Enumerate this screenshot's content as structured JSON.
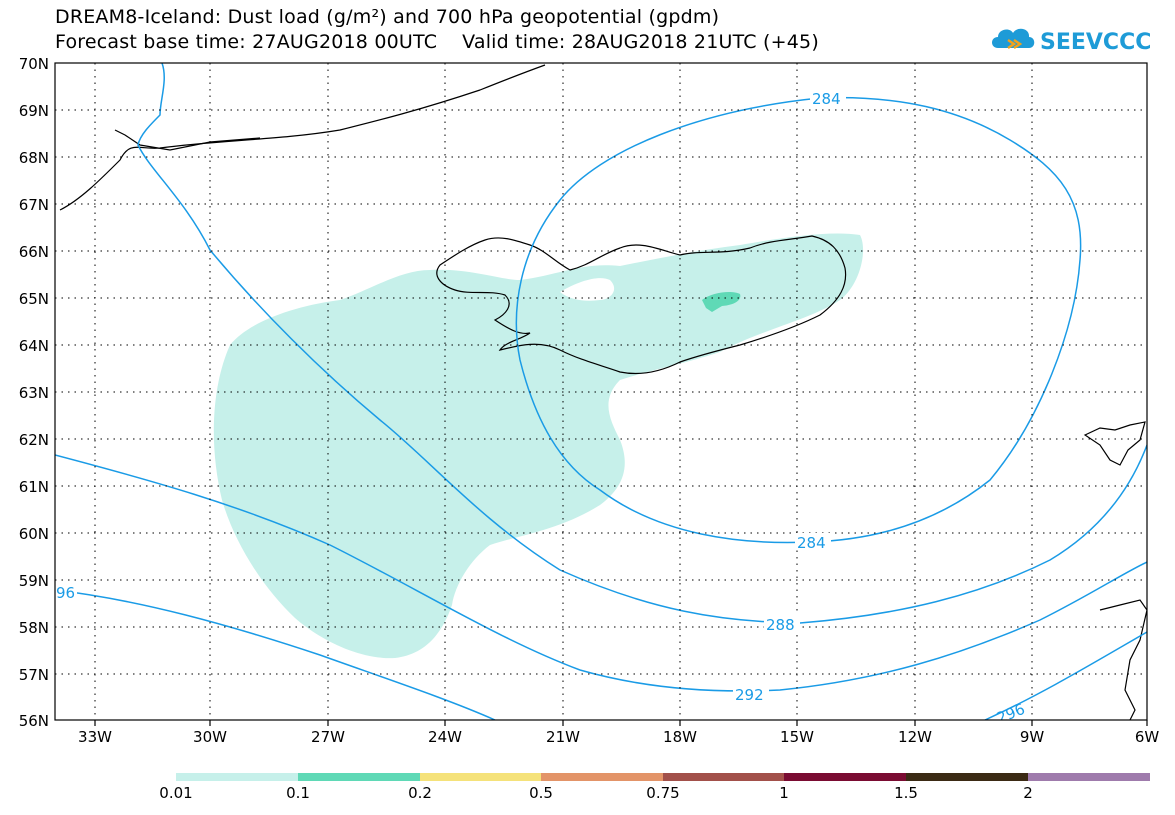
{
  "title": {
    "line1": "DREAM8-Iceland: Dust load (g/m²) and 700 hPa geopotential (gpdm)",
    "line2": "Forecast base time: 27AUG2018 00UTC    Valid time: 28AUG2018 21UTC (+45)"
  },
  "logo": {
    "text": "SEEVCCC",
    "icon": "cloud-icon",
    "color": "#1e9bd7"
  },
  "axes": {
    "lat_labels": [
      "70N",
      "69N",
      "68N",
      "67N",
      "66N",
      "65N",
      "64N",
      "63N",
      "62N",
      "61N",
      "60N",
      "59N",
      "58N",
      "57N",
      "56N"
    ],
    "lon_labels": [
      "33W",
      "30W",
      "27W",
      "24W",
      "21W",
      "18W",
      "15W",
      "12W",
      "9W",
      "6W"
    ],
    "grid": "dotted"
  },
  "contours": {
    "color": "#1a9be6",
    "labels": [
      "284",
      "284",
      "288",
      "292",
      "296",
      "96"
    ]
  },
  "colorbar": {
    "labels": [
      "0.01",
      "0.1",
      "0.2",
      "0.5",
      "0.75",
      "1",
      "1.5",
      "2"
    ],
    "colors": [
      "#c6f0ea",
      "#5fd9b6",
      "#f5e27a",
      "#e39468",
      "#a2504a",
      "#7a0b32",
      "#3b2a14",
      "#9f7bac"
    ]
  }
}
